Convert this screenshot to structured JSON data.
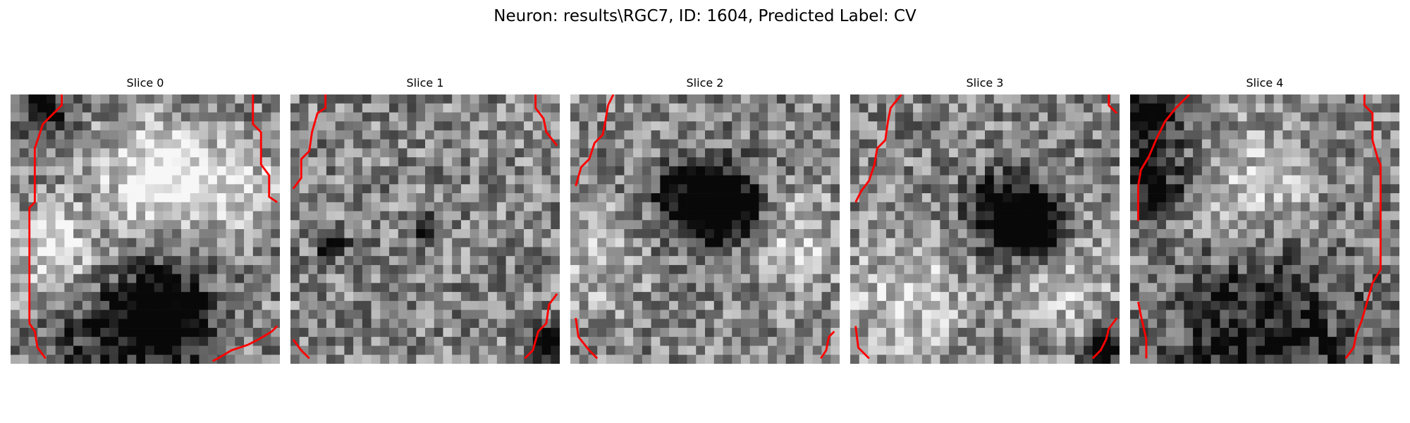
{
  "figure": {
    "title": "Neuron: results\\RGC7, ID: 1604, Predicted Label: CV",
    "colormap": "gray",
    "contour_color": "#ff0000",
    "grid_size": 30
  },
  "panels": [
    {
      "title": "Slice 0",
      "bright_spots": [
        [
          0.55,
          0.3,
          0.14,
          0.55
        ],
        [
          0.15,
          0.6,
          0.12,
          0.35
        ],
        [
          0.85,
          0.35,
          0.1,
          0.35
        ]
      ],
      "dark_spots": [
        [
          0.58,
          0.82,
          0.12,
          0.75
        ],
        [
          0.12,
          0.05,
          0.08,
          0.45
        ],
        [
          0.35,
          0.9,
          0.15,
          0.35
        ]
      ],
      "contours": [
        [
          [
            0.19,
            0.0
          ],
          [
            0.19,
            0.04
          ],
          [
            0.12,
            0.11
          ],
          [
            0.1,
            0.17
          ],
          [
            0.09,
            0.2
          ],
          [
            0.09,
            0.4
          ],
          [
            0.07,
            0.42
          ],
          [
            0.07,
            0.85
          ],
          [
            0.09,
            0.88
          ],
          [
            0.1,
            0.94
          ],
          [
            0.13,
            0.98
          ]
        ],
        [
          [
            0.9,
            0.0
          ],
          [
            0.9,
            0.11
          ],
          [
            0.93,
            0.14
          ],
          [
            0.93,
            0.26
          ],
          [
            0.96,
            0.3
          ],
          [
            0.96,
            0.38
          ],
          [
            0.99,
            0.4
          ]
        ],
        [
          [
            0.75,
            0.99
          ],
          [
            0.77,
            0.98
          ],
          [
            0.82,
            0.95
          ],
          [
            0.88,
            0.93
          ],
          [
            0.92,
            0.91
          ],
          [
            0.97,
            0.88
          ],
          [
            0.99,
            0.86
          ]
        ]
      ]
    },
    {
      "title": "Slice 1",
      "bright_spots": [],
      "dark_spots": [
        [
          0.15,
          0.55,
          0.04,
          0.6
        ],
        [
          0.5,
          0.5,
          0.04,
          0.5
        ],
        [
          0.95,
          0.92,
          0.05,
          0.6
        ]
      ],
      "contours": [
        [
          [
            0.13,
            0.0
          ],
          [
            0.13,
            0.05
          ],
          [
            0.1,
            0.07
          ],
          [
            0.08,
            0.14
          ],
          [
            0.07,
            0.21
          ],
          [
            0.04,
            0.24
          ],
          [
            0.04,
            0.31
          ],
          [
            0.01,
            0.35
          ]
        ],
        [
          [
            0.91,
            0.0
          ],
          [
            0.91,
            0.05
          ],
          [
            0.94,
            0.09
          ],
          [
            0.95,
            0.14
          ],
          [
            0.99,
            0.19
          ]
        ],
        [
          [
            0.01,
            0.91
          ],
          [
            0.04,
            0.95
          ],
          [
            0.07,
            0.98
          ]
        ],
        [
          [
            0.99,
            0.74
          ],
          [
            0.96,
            0.78
          ],
          [
            0.95,
            0.85
          ],
          [
            0.92,
            0.88
          ],
          [
            0.9,
            0.95
          ],
          [
            0.87,
            0.98
          ]
        ]
      ]
    },
    {
      "title": "Slice 2",
      "bright_spots": [
        [
          0.1,
          0.6,
          0.12,
          0.25
        ],
        [
          0.85,
          0.55,
          0.12,
          0.25
        ]
      ],
      "dark_spots": [
        [
          0.49,
          0.4,
          0.11,
          0.8
        ],
        [
          0.62,
          0.42,
          0.07,
          0.5
        ]
      ],
      "contours": [
        [
          [
            0.16,
            0.0
          ],
          [
            0.14,
            0.04
          ],
          [
            0.13,
            0.1
          ],
          [
            0.12,
            0.15
          ],
          [
            0.09,
            0.18
          ],
          [
            0.07,
            0.24
          ],
          [
            0.04,
            0.27
          ],
          [
            0.02,
            0.34
          ]
        ],
        [
          [
            0.02,
            0.83
          ],
          [
            0.03,
            0.9
          ],
          [
            0.07,
            0.95
          ],
          [
            0.1,
            0.98
          ]
        ],
        [
          [
            0.98,
            0.88
          ],
          [
            0.96,
            0.9
          ],
          [
            0.95,
            0.95
          ],
          [
            0.93,
            0.98
          ]
        ]
      ]
    },
    {
      "title": "Slice 3",
      "bright_spots": [
        [
          0.2,
          0.75,
          0.15,
          0.3
        ],
        [
          0.8,
          0.7,
          0.12,
          0.25
        ]
      ],
      "dark_spots": [
        [
          0.6,
          0.45,
          0.1,
          0.8
        ],
        [
          0.7,
          0.5,
          0.07,
          0.5
        ],
        [
          0.95,
          0.95,
          0.05,
          0.6
        ]
      ],
      "contours": [
        [
          [
            0.19,
            0.0
          ],
          [
            0.15,
            0.05
          ],
          [
            0.14,
            0.1
          ],
          [
            0.13,
            0.17
          ],
          [
            0.1,
            0.2
          ],
          [
            0.09,
            0.26
          ],
          [
            0.07,
            0.32
          ],
          [
            0.04,
            0.36
          ],
          [
            0.02,
            0.4
          ]
        ],
        [
          [
            0.96,
            0.0
          ],
          [
            0.96,
            0.04
          ],
          [
            0.99,
            0.07
          ]
        ],
        [
          [
            0.02,
            0.86
          ],
          [
            0.03,
            0.94
          ],
          [
            0.07,
            0.98
          ]
        ],
        [
          [
            0.99,
            0.83
          ],
          [
            0.96,
            0.87
          ],
          [
            0.95,
            0.91
          ],
          [
            0.93,
            0.95
          ],
          [
            0.9,
            0.98
          ]
        ]
      ]
    },
    {
      "title": "Slice 4",
      "bright_spots": [
        [
          0.45,
          0.35,
          0.15,
          0.3
        ]
      ],
      "dark_spots": [
        [
          0.05,
          0.05,
          0.1,
          0.55
        ],
        [
          0.5,
          0.93,
          0.25,
          0.45
        ],
        [
          0.1,
          0.3,
          0.1,
          0.4
        ]
      ],
      "contours": [
        [
          [
            0.22,
            0.0
          ],
          [
            0.17,
            0.05
          ],
          [
            0.13,
            0.1
          ],
          [
            0.1,
            0.16
          ],
          [
            0.07,
            0.23
          ],
          [
            0.04,
            0.28
          ],
          [
            0.03,
            0.34
          ],
          [
            0.03,
            0.47
          ]
        ],
        [
          [
            0.87,
            0.0
          ],
          [
            0.87,
            0.04
          ],
          [
            0.9,
            0.07
          ],
          [
            0.9,
            0.17
          ],
          [
            0.92,
            0.24
          ],
          [
            0.93,
            0.26
          ],
          [
            0.93,
            0.65
          ],
          [
            0.9,
            0.7
          ],
          [
            0.88,
            0.77
          ],
          [
            0.86,
            0.84
          ],
          [
            0.84,
            0.89
          ],
          [
            0.83,
            0.94
          ],
          [
            0.8,
            0.98
          ]
        ],
        [
          [
            0.03,
            0.77
          ],
          [
            0.04,
            0.82
          ],
          [
            0.06,
            0.91
          ],
          [
            0.06,
            0.98
          ]
        ]
      ]
    }
  ]
}
